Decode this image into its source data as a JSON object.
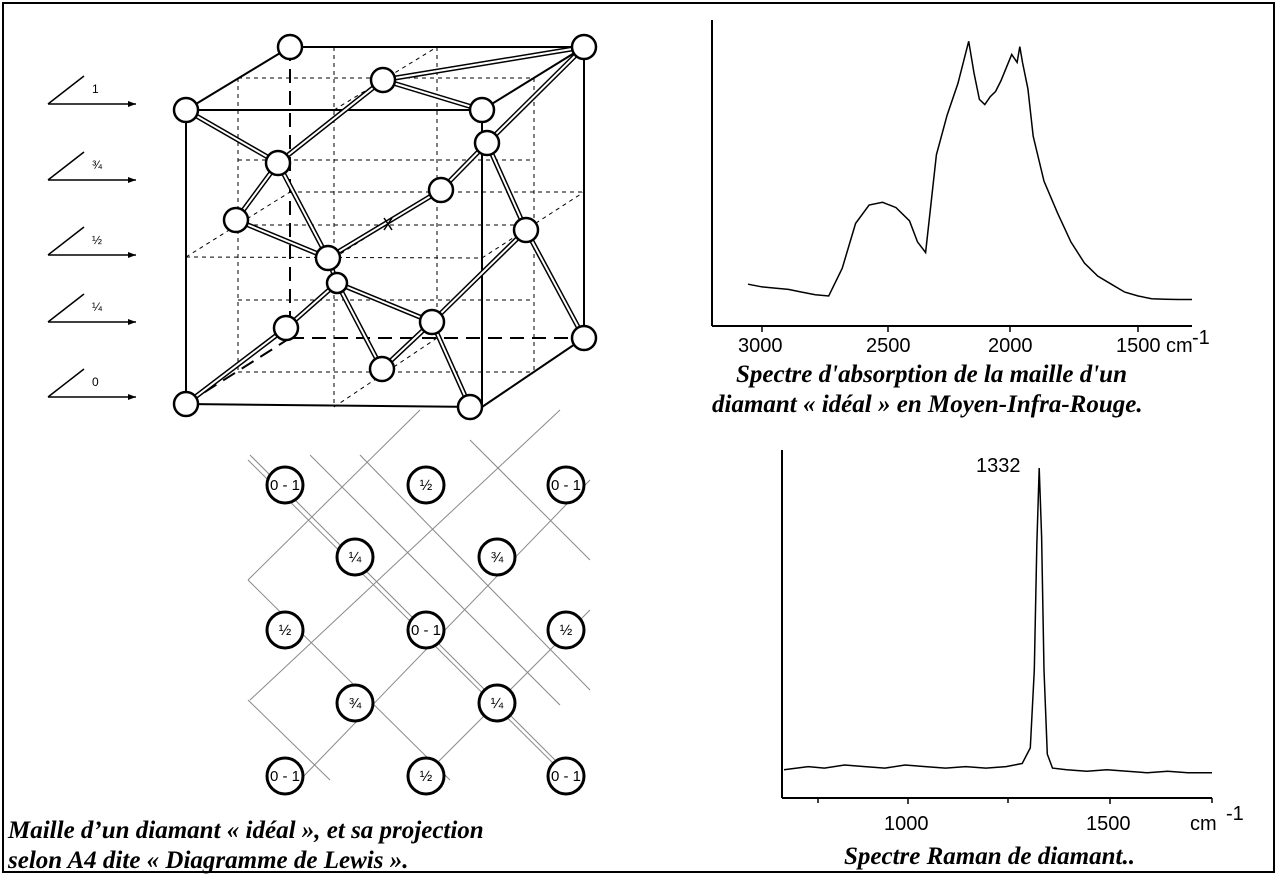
{
  "layer_labels": [
    "1",
    "¾",
    "½",
    "¼",
    "0"
  ],
  "projection_nodes": [
    [
      "0 - 1",
      "½",
      "0 - 1"
    ],
    [
      "¼",
      "¾"
    ],
    [
      "½",
      "0 - 1",
      "½"
    ],
    [
      "¾",
      "¼"
    ],
    [
      "0 - 1",
      "½",
      "0 - 1"
    ]
  ],
  "captions": {
    "left_line1": "Maille d’un diamant « idéal », et sa projection",
    "left_line2": "selon A4 dite « Diagramme de Lewis ».",
    "ir_line1": "Spectre d'absorption de la maille d'un",
    "ir_line2": "diamant « idéal » en Moyen-Infra-Rouge.",
    "raman": "Spectre Raman de diamant.."
  },
  "chart_data": [
    {
      "type": "line",
      "xlim": [
        3000,
        1350
      ],
      "x_ticks": [
        "3000",
        "2500",
        "2000",
        "1500 cm"
      ],
      "x_unit_superscript": "-1",
      "series": [
        {
          "x": [
            3000,
            2950,
            2900,
            2850,
            2800,
            2750,
            2700,
            2650,
            2600,
            2550,
            2500,
            2450,
            2400,
            2370,
            2340,
            2300,
            2260,
            2220,
            2200,
            2180,
            2160,
            2140,
            2120,
            2100,
            2080,
            2060,
            2040,
            2020,
            2000,
            1990,
            1980,
            1960,
            1940,
            1900,
            1850,
            1800,
            1750,
            1700,
            1650,
            1600,
            1550,
            1500,
            1450,
            1400,
            1350
          ],
          "y": [
            0.06,
            0.05,
            0.045,
            0.04,
            0.03,
            0.02,
            0.015,
            0.12,
            0.29,
            0.36,
            0.37,
            0.35,
            0.3,
            0.22,
            0.18,
            0.55,
            0.7,
            0.82,
            0.9,
            0.98,
            0.86,
            0.76,
            0.74,
            0.77,
            0.79,
            0.83,
            0.88,
            0.93,
            0.9,
            0.96,
            0.9,
            0.8,
            0.62,
            0.45,
            0.33,
            0.22,
            0.14,
            0.09,
            0.06,
            0.03,
            0.015,
            0.005,
            0.003,
            0.002,
            0.002
          ]
        }
      ]
    },
    {
      "type": "line",
      "xlim": [
        700,
        1760
      ],
      "x_ticks": [
        "1000",
        "1500"
      ],
      "x_unit": "cm",
      "x_unit_superscript": "-1",
      "peak_label": "1332",
      "series": [
        {
          "x": [
            700,
            760,
            800,
            850,
            900,
            950,
            1000,
            1050,
            1100,
            1150,
            1200,
            1250,
            1290,
            1310,
            1320,
            1326,
            1332,
            1338,
            1344,
            1352,
            1365,
            1400,
            1450,
            1500,
            1550,
            1600,
            1650,
            1700,
            1760
          ],
          "y": [
            0.03,
            0.04,
            0.035,
            0.045,
            0.04,
            0.035,
            0.045,
            0.04,
            0.035,
            0.04,
            0.035,
            0.04,
            0.05,
            0.1,
            0.35,
            0.75,
            1.0,
            0.78,
            0.35,
            0.08,
            0.035,
            0.03,
            0.025,
            0.03,
            0.025,
            0.02,
            0.025,
            0.02,
            0.02
          ]
        }
      ]
    }
  ]
}
